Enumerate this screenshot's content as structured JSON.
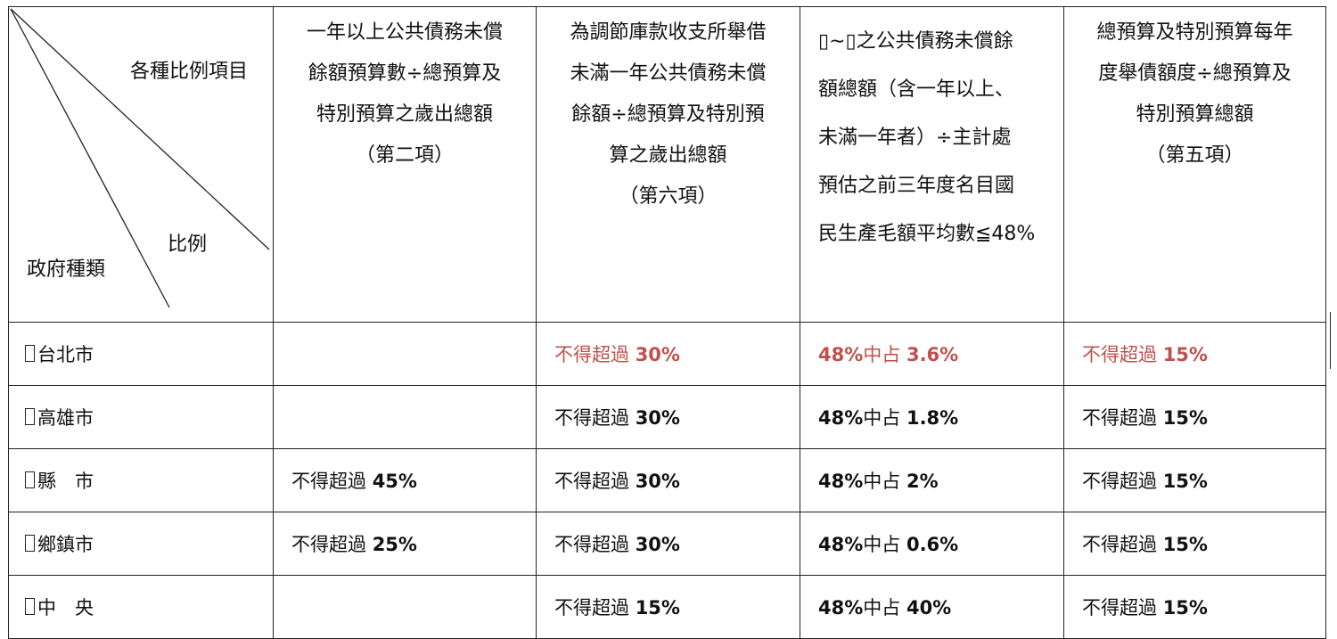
{
  "corner": {
    "items_label": "各種比例項目",
    "ratio_label": "比例",
    "gov_label": "政府種類"
  },
  "columns": [
    {
      "lines": [
        "一年以上公共債務未償",
        "餘額預算數÷總預算及",
        "特別預算之歲出總額",
        "（第二項）"
      ]
    },
    {
      "lines": [
        "為調節庫款收支所舉借",
        "未滿一年公共債務未償",
        "餘額÷總預算及特別預",
        "算之歲出總額",
        "（第六項）"
      ]
    },
    {
      "lines": [
        "▯∼▯之公共債務未償餘",
        "額總額（含一年以上、",
        "未滿一年者）÷主計處",
        "預估之前三年度名目國",
        "民生產毛額平均數≦48%"
      ]
    },
    {
      "lines": [
        "總預算及特別預算每年",
        "度舉債額度÷總預算及",
        "特別預算總額",
        "（第五項）"
      ]
    }
  ],
  "rows": [
    {
      "name": "台北市",
      "c1": "",
      "c2": "不得超過 30%",
      "c3": "48%中占 3.6%",
      "c4": "不得超過 15%",
      "highlight": true
    },
    {
      "name": "高雄市",
      "c1": "",
      "c2": "不得超過 30%",
      "c3": "48%中占 1.8%",
      "c4": "不得超過 15%",
      "highlight": false
    },
    {
      "name": "縣　市",
      "c1": "不得超過 45%",
      "c2": "不得超過 30%",
      "c3": "48%中占 2%",
      "c4": "不得超過 15%",
      "highlight": false
    },
    {
      "name": "鄉鎮市",
      "c1": "不得超過 25%",
      "c2": "不得超過 30%",
      "c3": "48%中占 0.6%",
      "c4": "不得超過 15%",
      "highlight": false
    },
    {
      "name": "中　央",
      "c1": "",
      "c2": "不得超過 15%",
      "c3": "48%中占 40%",
      "c4": "不得超過 15%",
      "highlight": false
    }
  ],
  "colors": {
    "highlight": "#c0504d",
    "border": "#222222"
  }
}
